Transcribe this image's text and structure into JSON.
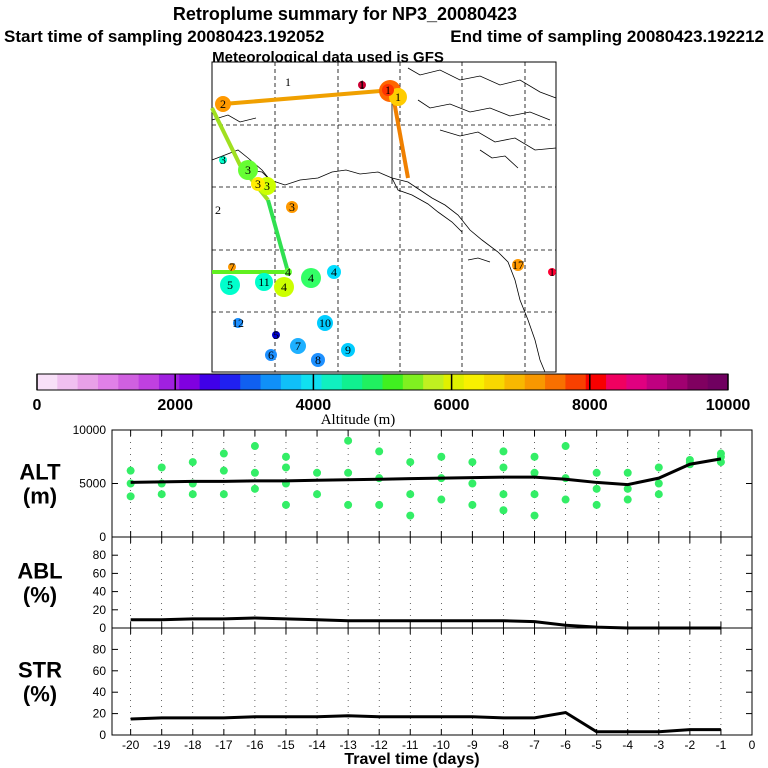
{
  "title": {
    "line1": "Retroplume summary for NP3_20080423",
    "start": "Start time of sampling 20080423.192052",
    "end": "End time of sampling 20080423.192212",
    "met": "Meteorological data used is GFS"
  },
  "colorbar": {
    "label": "Altitude (m)",
    "ticks": [
      "0",
      "2000",
      "4000",
      "6000",
      "8000",
      "10000"
    ],
    "colors": [
      "#f8e0f8",
      "#f0c0f0",
      "#e8a0e8",
      "#e080e8",
      "#d060e0",
      "#c040e0",
      "#a020e0",
      "#8000e0",
      "#4000e8",
      "#2020f0",
      "#1060f0",
      "#1090f8",
      "#10c0f8",
      "#10e0f0",
      "#10f0c0",
      "#10f090",
      "#20f060",
      "#40f020",
      "#80f020",
      "#c0f020",
      "#e0f000",
      "#f8f000",
      "#f8d800",
      "#f8b800",
      "#f89800",
      "#f87000",
      "#f84000",
      "#f80000",
      "#f00060",
      "#e00080",
      "#c00080",
      "#a00070",
      "#800060",
      "#700060"
    ]
  },
  "map": {
    "markers": [
      {
        "label": "1",
        "color": "#ff6600"
      },
      {
        "label": "1",
        "color": "#ffcc00"
      },
      {
        "label": "1",
        "color": "#ff3300"
      },
      {
        "label": "1",
        "color": "#cc0033"
      },
      {
        "label": "2",
        "color": "#ff9900"
      },
      {
        "label": "2",
        "color": "#00aaff"
      },
      {
        "label": "3",
        "color": "#ccff00"
      },
      {
        "label": "3",
        "color": "#ffee00"
      },
      {
        "label": "3",
        "color": "#00ffcc"
      },
      {
        "label": "3",
        "color": "#66ff33"
      },
      {
        "label": "3",
        "color": "#ff9900"
      },
      {
        "label": "4",
        "color": "#ccff00"
      },
      {
        "label": "4",
        "color": "#33ff66"
      },
      {
        "label": "4",
        "color": "#00ddff"
      },
      {
        "label": "4",
        "color": "#66ff33"
      },
      {
        "label": "5",
        "color": "#00ffcc"
      },
      {
        "label": "5",
        "color": "#0000cc"
      },
      {
        "label": "6",
        "color": "#1e90ff"
      },
      {
        "label": "7",
        "color": "#ff9900"
      },
      {
        "label": "7",
        "color": "#1eb0ff"
      },
      {
        "label": "8",
        "color": "#1e90ff"
      },
      {
        "label": "9",
        "color": "#00ccff"
      },
      {
        "label": "10",
        "color": "#00ccff"
      },
      {
        "label": "11",
        "color": "#00ffcc"
      },
      {
        "label": "12",
        "color": "#1e90ff"
      },
      {
        "label": "17",
        "color": "#ff9900"
      },
      {
        "label": "1",
        "color": "#ff0033"
      }
    ],
    "edge_labels": [
      "1",
      "1",
      "2"
    ]
  },
  "chart_data": [
    {
      "type": "line",
      "panel": "ALT",
      "ylabel": "ALT (m)",
      "ylim": [
        0,
        10000
      ],
      "yticks": [
        "0",
        "5000",
        "10000"
      ],
      "x": [
        -20,
        -19,
        -18,
        -17,
        -16,
        -15,
        -14,
        -13,
        -12,
        -11,
        -10,
        -9,
        -8,
        -7,
        -6,
        -5,
        -4,
        -3,
        -2,
        -1
      ],
      "values": [
        5100,
        5150,
        5200,
        5200,
        5250,
        5250,
        5300,
        5350,
        5400,
        5450,
        5500,
        5550,
        5600,
        5600,
        5400,
        5100,
        4900,
        5500,
        6800,
        7300
      ],
      "scatter_color": "#33ee66",
      "scatter": [
        [
          -20,
          6200
        ],
        [
          -20,
          5000
        ],
        [
          -20,
          3800
        ],
        [
          -19,
          6500
        ],
        [
          -19,
          5000
        ],
        [
          -19,
          4000
        ],
        [
          -18,
          7000
        ],
        [
          -18,
          5000
        ],
        [
          -18,
          4000
        ],
        [
          -17,
          7800
        ],
        [
          -17,
          6200
        ],
        [
          -17,
          4000
        ],
        [
          -16,
          8500
        ],
        [
          -16,
          6000
        ],
        [
          -16,
          4500
        ],
        [
          -15,
          7500
        ],
        [
          -15,
          6500
        ],
        [
          -15,
          5000
        ],
        [
          -15,
          3000
        ],
        [
          -14,
          6000
        ],
        [
          -14,
          4000
        ],
        [
          -13,
          9000
        ],
        [
          -13,
          6000
        ],
        [
          -13,
          3000
        ],
        [
          -12,
          8000
        ],
        [
          -12,
          5500
        ],
        [
          -12,
          3000
        ],
        [
          -11,
          7000
        ],
        [
          -11,
          4000
        ],
        [
          -11,
          2000
        ],
        [
          -10,
          7500
        ],
        [
          -10,
          5500
        ],
        [
          -10,
          3500
        ],
        [
          -9,
          7000
        ],
        [
          -9,
          5000
        ],
        [
          -9,
          3000
        ],
        [
          -8,
          8000
        ],
        [
          -8,
          6500
        ],
        [
          -8,
          4000
        ],
        [
          -8,
          2500
        ],
        [
          -7,
          7500
        ],
        [
          -7,
          6000
        ],
        [
          -7,
          4000
        ],
        [
          -7,
          2000
        ],
        [
          -6,
          8500
        ],
        [
          -6,
          5500
        ],
        [
          -6,
          3500
        ],
        [
          -5,
          6000
        ],
        [
          -5,
          4500
        ],
        [
          -5,
          3000
        ],
        [
          -4,
          6000
        ],
        [
          -4,
          4500
        ],
        [
          -4,
          3500
        ],
        [
          -3,
          6500
        ],
        [
          -3,
          5000
        ],
        [
          -3,
          4000
        ],
        [
          -2,
          7200
        ],
        [
          -2,
          7000
        ],
        [
          -2,
          6800
        ],
        [
          -1,
          7500
        ],
        [
          -1,
          7000
        ],
        [
          -1,
          7800
        ]
      ]
    },
    {
      "type": "line",
      "panel": "ABL",
      "ylabel": "ABL (%)",
      "ylim": [
        0,
        100
      ],
      "yticks": [
        "0",
        "20",
        "40",
        "60",
        "80"
      ],
      "x": [
        -20,
        -19,
        -18,
        -17,
        -16,
        -15,
        -14,
        -13,
        -12,
        -11,
        -10,
        -9,
        -8,
        -7,
        -6,
        -5,
        -4,
        -3,
        -2,
        -1
      ],
      "values": [
        9,
        9,
        10,
        10,
        11,
        10,
        9,
        8,
        8,
        8,
        8,
        8,
        8,
        7,
        3,
        1,
        0,
        0,
        0,
        0
      ]
    },
    {
      "type": "line",
      "panel": "STR",
      "ylabel": "STR (%)",
      "ylim": [
        0,
        100
      ],
      "yticks": [
        "0",
        "20",
        "40",
        "60",
        "80"
      ],
      "xlabel": "Travel time (days)",
      "xticks": [
        "-20",
        "-19",
        "-18",
        "-17",
        "-16",
        "-15",
        "-14",
        "-13",
        "-12",
        "-11",
        "-10",
        "-9",
        "-8",
        "-7",
        "-6",
        "-5",
        "-4",
        "-3",
        "-2",
        "-1",
        "0"
      ],
      "x": [
        -20,
        -19,
        -18,
        -17,
        -16,
        -15,
        -14,
        -13,
        -12,
        -11,
        -10,
        -9,
        -8,
        -7,
        -6,
        -5,
        -4,
        -3,
        -2,
        -1
      ],
      "values": [
        15,
        16,
        16,
        16,
        17,
        17,
        17,
        18,
        17,
        17,
        17,
        17,
        16,
        16,
        21,
        3,
        3,
        3,
        5,
        5
      ]
    }
  ]
}
